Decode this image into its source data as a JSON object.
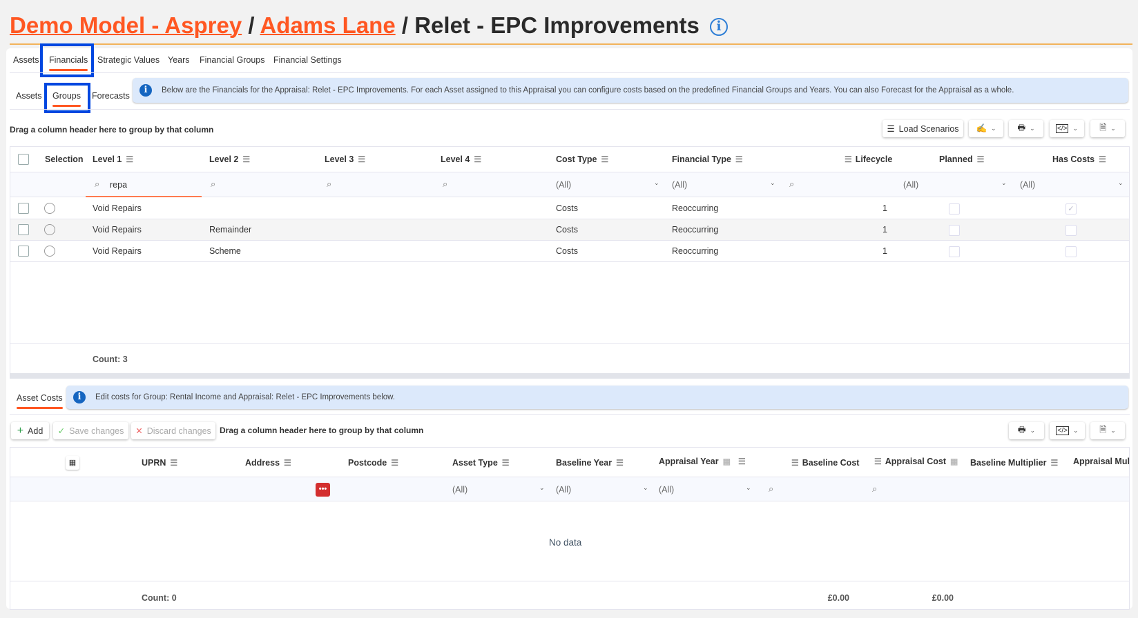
{
  "breadcrumb": {
    "model": "Demo Model - Asprey",
    "asset": "Adams Lane",
    "current": "Relet - EPC Improvements",
    "sep": "/"
  },
  "main_tabs": [
    "Assets",
    "Financials",
    "Strategic Values",
    "Years",
    "Financial Groups",
    "Financial Settings"
  ],
  "sub_tabs": [
    "Assets",
    "Groups",
    "Forecasts"
  ],
  "info_text": "Below are the Financials for the Appraisal: Relet - EPC Improvements. For each Asset assigned to this Appraisal you can configure costs based on the predefined Financial Groups and Years. You can also Forecast for the Appraisal as a whole.",
  "groups_grid": {
    "group_hint": "Drag a column header here to group by that column",
    "load_scenarios": "Load Scenarios",
    "columns": [
      "Selection",
      "Level 1",
      "Level 2",
      "Level 3",
      "Level 4",
      "Cost Type",
      "Financial Type",
      "Lifecycle",
      "Planned",
      "Has Costs"
    ],
    "filters": {
      "level1": "repa",
      "cost_type": "(All)",
      "financial_type": "(All)",
      "planned": "(All)",
      "has_costs": "(All)"
    },
    "rows": [
      {
        "level1": "Void Repairs",
        "level2": "",
        "cost_type": "Costs",
        "financial_type": "Reoccurring",
        "lifecycle": "1",
        "planned": false,
        "has_costs": true
      },
      {
        "level1": "Void Repairs",
        "level2": "Remainder",
        "cost_type": "Costs",
        "financial_type": "Reoccurring",
        "lifecycle": "1",
        "planned": false,
        "has_costs": false
      },
      {
        "level1": "Void Repairs",
        "level2": "Scheme",
        "cost_type": "Costs",
        "financial_type": "Reoccurring",
        "lifecycle": "1",
        "planned": false,
        "has_costs": false
      }
    ],
    "count": "Count: 3"
  },
  "asset_costs": {
    "tab": "Asset Costs",
    "info_text": "Edit costs for Group: Rental Income and Appraisal: Relet - EPC Improvements below.",
    "add": "Add",
    "save": "Save changes",
    "discard": "Discard changes",
    "group_hint": "Drag a column header here to group by that column",
    "columns": [
      "UPRN",
      "Address",
      "Postcode",
      "Asset Type",
      "Baseline Year",
      "Appraisal Year",
      "Baseline Cost",
      "Appraisal Cost",
      "Baseline Multiplier",
      "Appraisal Mult"
    ],
    "filters": {
      "asset_type": "(All)",
      "baseline_year": "(All)",
      "appraisal_year": "(All)"
    },
    "empty": "No data",
    "count": "Count: 0",
    "baseline_cost_total": "£0.00",
    "appraisal_cost_total": "£0.00"
  },
  "colors": {
    "accent": "#ff5722",
    "info_bg": "#dce9fb",
    "highlight": "#0047e0"
  }
}
